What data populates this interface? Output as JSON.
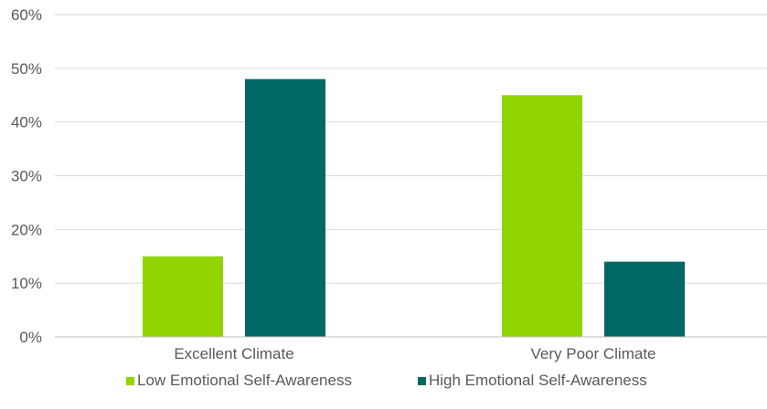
{
  "chart_data": {
    "type": "bar",
    "categories": [
      "Excellent Climate",
      "Very Poor Climate"
    ],
    "series": [
      {
        "name": "Low Emotional Self-Awareness",
        "values": [
          15,
          45
        ],
        "color": "#92D400"
      },
      {
        "name": "High Emotional Self-Awareness",
        "values": [
          48,
          14
        ],
        "color": "#006764"
      }
    ],
    "y_ticks": [
      "0%",
      "10%",
      "20%",
      "30%",
      "40%",
      "50%",
      "60%"
    ],
    "ylim": [
      0,
      60
    ],
    "grid": true,
    "legend_position": "bottom",
    "grid_color": "#D9D9D9",
    "axis_color": "#BFBFBF",
    "text_color": "#595959"
  }
}
